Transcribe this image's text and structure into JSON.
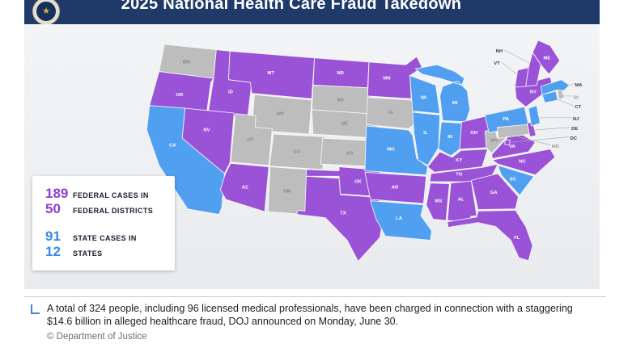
{
  "header": {
    "title": "2025 National Health Care Fraud Takedown"
  },
  "legend": {
    "rows": [
      {
        "value": "189",
        "label": "FEDERAL CASES IN",
        "number_color": "#8e3fd1"
      },
      {
        "value": "50",
        "label": "FEDERAL DISTRICTS",
        "number_color": "#8e3fd1"
      },
      {
        "value": "91",
        "label": "STATE CASES IN",
        "number_color": "#3a87e9"
      },
      {
        "value": "12",
        "label": "STATES",
        "number_color": "#3a87e9"
      }
    ]
  },
  "colors": {
    "federal": "#9a53d7",
    "state": "#519ff1",
    "none": "#bdbdbd",
    "header_bg": "#1f3a68"
  },
  "map": {
    "federal_states": [
      "OR",
      "NV",
      "ID",
      "MT",
      "AZ",
      "ND",
      "MN",
      "OK",
      "TX",
      "AR",
      "OH",
      "KY",
      "TN",
      "MS",
      "AL",
      "GA",
      "FL",
      "NC",
      "VA",
      "NY",
      "VT",
      "NH",
      "ME",
      "DE",
      "DC"
    ],
    "state_case_states": [
      "CA",
      "WI",
      "MI",
      "IL",
      "IN",
      "MO",
      "LA",
      "PA",
      "MA",
      "SC",
      "CT",
      "NJ"
    ],
    "no_case_states": [
      "WA",
      "WY",
      "UT",
      "CO",
      "NM",
      "SD",
      "NE",
      "KS",
      "IA",
      "WV",
      "RI",
      "MD"
    ],
    "external_label_states": [
      "NH",
      "VT",
      "MA",
      "RI",
      "CT",
      "NJ",
      "DE",
      "DC",
      "MD"
    ]
  },
  "caption": {
    "text": "A total of 324 people, including 96 licensed medical professionals, have been charged in connection with a staggering $14.6 billion in alleged healthcare fraud, DOJ announced on Monday, June 30.",
    "credit": "© Department of Justice"
  }
}
